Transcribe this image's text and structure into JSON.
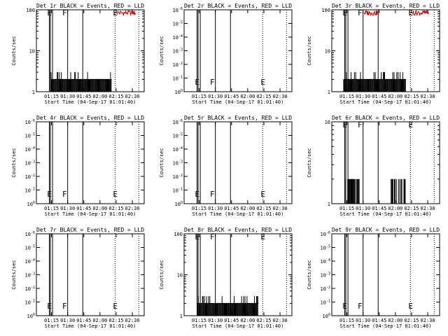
{
  "chart_data": [
    {
      "type": "line",
      "title": "Det 1r BLACK = Events, RED = LLD",
      "ylabel": "Counts/sec",
      "xlabel": "Start Time (04-Sep-17 01:01:40)",
      "yscale": "log",
      "ylim": [
        1,
        100
      ],
      "yticks": [
        "1",
        "10",
        "100"
      ],
      "xticks": [
        "01:15",
        "01:30",
        "01:45",
        "02:00",
        "02:15",
        "02:30"
      ],
      "markers": [
        {
          "label": "E"
        },
        {
          "label": "F"
        },
        {
          "label": "E"
        }
      ],
      "series": [
        {
          "color": "#000000",
          "pattern": "low",
          "base": 2,
          "peak": 3,
          "start": "01:14",
          "end": "02:11"
        },
        {
          "color": "#cc0000",
          "pattern": "top",
          "start": "02:16",
          "end": "02:33"
        }
      ]
    },
    {
      "type": "line",
      "title": "Det 2r BLACK = Events, RED = LLD",
      "ylabel": "Counts/sec",
      "xlabel": "Start Time (04-Sep-17 01:01:40)",
      "yscale": "log",
      "ylim": [
        1,
        1e-06
      ],
      "yticks": [
        "10^0",
        "10^-1",
        "10^-2",
        "10^-3",
        "10^-4",
        "10^-5",
        "10^-6"
      ],
      "xticks": [
        "01:15",
        "01:30",
        "01:45",
        "02:00",
        "02:15",
        "02:30"
      ],
      "markers": [
        {
          "label": "E"
        },
        {
          "label": "F"
        },
        {
          "label": "E"
        }
      ],
      "series": []
    },
    {
      "type": "line",
      "title": "Det 3r BLACK = Events, RED = LLD",
      "ylabel": "Counts/sec",
      "xlabel": "Start Time (04-Sep-17 01:01:40)",
      "yscale": "log",
      "ylim": [
        1,
        100
      ],
      "yticks": [
        "1",
        "10",
        "100"
      ],
      "xticks": [
        "01:15",
        "01:30",
        "01:45",
        "02:00",
        "02:15",
        "02:30"
      ],
      "markers": [
        {
          "label": "E"
        },
        {
          "label": "F"
        },
        {
          "label": "E"
        }
      ],
      "series": [
        {
          "color": "#000000",
          "pattern": "low",
          "base": 2,
          "peak": 3,
          "start": "01:12",
          "end": "02:10"
        },
        {
          "color": "#cc0000",
          "pattern": "top",
          "start": "01:31",
          "end": "01:44"
        },
        {
          "color": "#cc0000",
          "pattern": "top",
          "start": "02:16",
          "end": "02:31"
        }
      ]
    },
    {
      "type": "line",
      "title": "Det 4r BLACK = Events, RED = LLD",
      "ylabel": "Counts/sec",
      "xlabel": "Start Time (04-Sep-17 01:01:40)",
      "yscale": "log",
      "ylim": [
        1,
        1e-06
      ],
      "yticks": [
        "10^0",
        "10^-1",
        "10^-2",
        "10^-3",
        "10^-4",
        "10^-5",
        "10^-6"
      ],
      "xticks": [
        "01:15",
        "01:30",
        "01:45",
        "02:00",
        "02:15",
        "02:30"
      ],
      "markers": [
        {
          "label": "E"
        },
        {
          "label": "F"
        },
        {
          "label": "E"
        }
      ],
      "series": []
    },
    {
      "type": "line",
      "title": "Det 5r BLACK = Events, RED = LLD",
      "ylabel": "Counts/sec",
      "xlabel": "Start Time (04-Sep-17 01:01:40)",
      "yscale": "log",
      "ylim": [
        1,
        1e-06
      ],
      "yticks": [
        "10^0",
        "10^-1",
        "10^-2",
        "10^-3",
        "10^-4",
        "10^-5",
        "10^-6"
      ],
      "xticks": [
        "01:15",
        "01:30",
        "01:45",
        "02:00",
        "02:15",
        "02:30"
      ],
      "markers": [
        {
          "label": "E"
        },
        {
          "label": "F"
        },
        {
          "label": "E"
        }
      ],
      "series": []
    },
    {
      "type": "line",
      "title": "Det 6r BLACK = Events, RED = LLD",
      "ylabel": "Counts/sec",
      "xlabel": "Start Time (04-Sep-17 01:01:40)",
      "yscale": "log",
      "ylim": [
        1,
        10
      ],
      "yticks": [
        "1",
        "10"
      ],
      "xticks": [
        "01:15",
        "01:30",
        "01:45",
        "02:00",
        "02:15",
        "02:30"
      ],
      "markers": [
        {
          "label": "E"
        },
        {
          "label": "F"
        },
        {
          "label": "E"
        }
      ],
      "series": [
        {
          "color": "#000000",
          "pattern": "burst",
          "base": 1,
          "peak": 2,
          "start": "01:12",
          "end": "01:27"
        },
        {
          "color": "#000000",
          "pattern": "burst",
          "base": 1,
          "peak": 2,
          "start": "01:56",
          "end": "02:11"
        }
      ]
    },
    {
      "type": "line",
      "title": "Det 7r BLACK = Events, RED = LLD",
      "ylabel": "Counts/sec",
      "xlabel": "Start Time (04-Sep-17 01:01:40)",
      "yscale": "log",
      "ylim": [
        1,
        1e-06
      ],
      "yticks": [
        "10^0",
        "10^-1",
        "10^-2",
        "10^-3",
        "10^-4",
        "10^-5",
        "10^-6"
      ],
      "xticks": [
        "01:15",
        "01:30",
        "01:45",
        "02:00",
        "02:15",
        "02:30"
      ],
      "markers": [
        {
          "label": "E"
        },
        {
          "label": "F"
        },
        {
          "label": "E"
        }
      ],
      "series": []
    },
    {
      "type": "line",
      "title": "Det 8r BLACK = Events, RED = LLD",
      "ylabel": "Counts/sec",
      "xlabel": "Start Time (04-Sep-17 01:01:40)",
      "yscale": "log",
      "ylim": [
        1,
        100
      ],
      "yticks": [
        "1",
        "10",
        "100"
      ],
      "xticks": [
        "01:15",
        "01:30",
        "01:45",
        "02:00",
        "02:15",
        "02:30"
      ],
      "markers": [
        {
          "label": "E"
        },
        {
          "label": "F"
        },
        {
          "label": "E"
        }
      ],
      "series": [
        {
          "color": "#000000",
          "pattern": "low",
          "base": 2,
          "peak": 3,
          "start": "01:13",
          "end": "02:10"
        }
      ]
    },
    {
      "type": "line",
      "title": "Det 9r BLACK = Events, RED = LLD",
      "ylabel": "Counts/sec",
      "xlabel": "Start Time (04-Sep-17 01:01:40)",
      "yscale": "log",
      "ylim": [
        1,
        1e-06
      ],
      "yticks": [
        "10^0",
        "10^-1",
        "10^-2",
        "10^-3",
        "10^-4",
        "10^-5",
        "10^-6"
      ],
      "xticks": [
        "01:15",
        "01:30",
        "01:45",
        "02:00",
        "02:15",
        "02:30"
      ],
      "markers": [
        {
          "label": "E"
        },
        {
          "label": "F"
        },
        {
          "label": "E"
        }
      ],
      "series": []
    }
  ]
}
